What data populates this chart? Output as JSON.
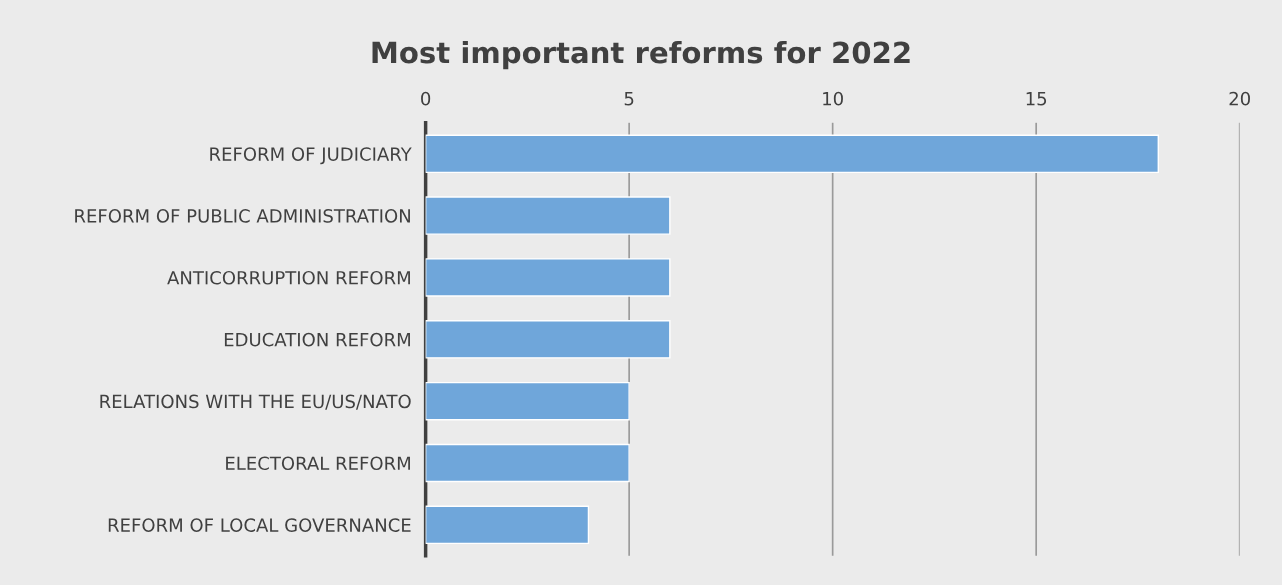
{
  "chart_data": {
    "type": "bar",
    "orientation": "horizontal",
    "title": "Most important reforms for 2022",
    "categories": [
      "REFORM OF JUDICIARY",
      "REFORM OF PUBLIC ADMINISTRATION",
      "ANTICORRUPTION REFORM",
      "EDUCATION REFORM",
      "RELATIONS WITH THE EU/US/NATO",
      "ELECTORAL REFORM",
      "REFORM OF LOCAL GOVERNANCE"
    ],
    "values": [
      18,
      6,
      6,
      6,
      5,
      5,
      4
    ],
    "color": "#6fa6da",
    "xlim": [
      0,
      20
    ],
    "xticks": [
      0,
      5,
      10,
      15,
      20
    ],
    "grid": "x"
  }
}
